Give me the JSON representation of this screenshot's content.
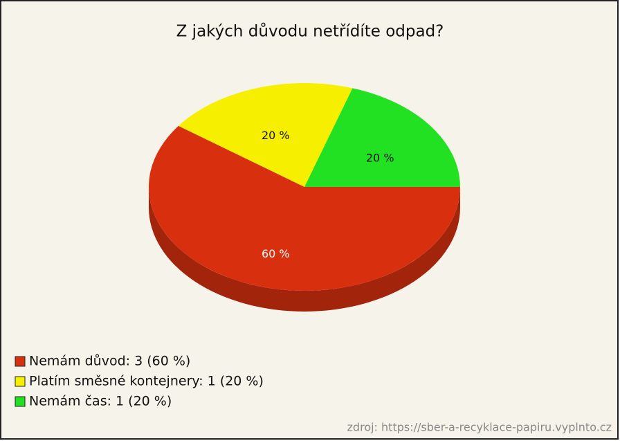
{
  "chart_data": {
    "type": "pie",
    "title": "Z jakých důvodu netřídíte odpad?",
    "categories": [
      "Nemám důvod: 3 (60 %)",
      "Platím směsné kontejnery: 1 (20 %)",
      "Nemám čas: 1 (20 %)"
    ],
    "values": [
      60,
      20,
      20
    ],
    "value_labels": [
      "60 %",
      "20 %",
      "20 %"
    ],
    "colors": [
      "#d8300f",
      "#f6f000",
      "#22e022"
    ],
    "source": "zdroj: https://sber-a-recyklace-papiru.vyplnto.cz"
  }
}
